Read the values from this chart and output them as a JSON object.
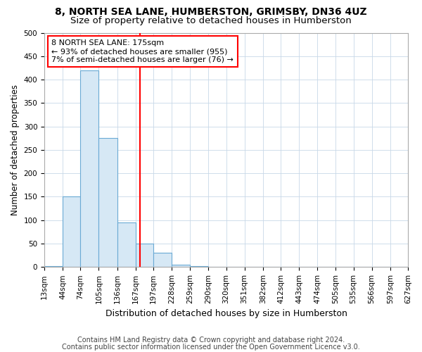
{
  "title1": "8, NORTH SEA LANE, HUMBERSTON, GRIMSBY, DN36 4UZ",
  "title2": "Size of property relative to detached houses in Humberston",
  "xlabel": "Distribution of detached houses by size in Humberston",
  "ylabel": "Number of detached properties",
  "bin_edges": [
    13,
    44,
    74,
    105,
    136,
    167,
    197,
    228,
    259,
    290,
    320,
    351,
    382,
    412,
    443,
    474,
    505,
    535,
    566,
    597,
    627
  ],
  "bar_heights": [
    2,
    150,
    420,
    275,
    95,
    50,
    30,
    5,
    2,
    0,
    0,
    0,
    0,
    0,
    0,
    0,
    0,
    0,
    0,
    0
  ],
  "bar_color": "#d6e8f5",
  "bar_edgecolor": "#6aaad4",
  "red_line_x": 175,
  "annotation_line1": "8 NORTH SEA LANE: 175sqm",
  "annotation_line2": "← 93% of detached houses are smaller (955)",
  "annotation_line3": "7% of semi-detached houses are larger (76) →",
  "annotation_box_color": "white",
  "annotation_box_edgecolor": "red",
  "ylim": [
    0,
    500
  ],
  "yticks": [
    0,
    50,
    100,
    150,
    200,
    250,
    300,
    350,
    400,
    450,
    500
  ],
  "footnote1": "Contains HM Land Registry data © Crown copyright and database right 2024.",
  "footnote2": "Contains public sector information licensed under the Open Government Licence v3.0.",
  "title1_fontsize": 10,
  "title2_fontsize": 9.5,
  "xlabel_fontsize": 9,
  "ylabel_fontsize": 8.5,
  "tick_fontsize": 7.5,
  "annotation_fontsize": 8,
  "footnote_fontsize": 7
}
